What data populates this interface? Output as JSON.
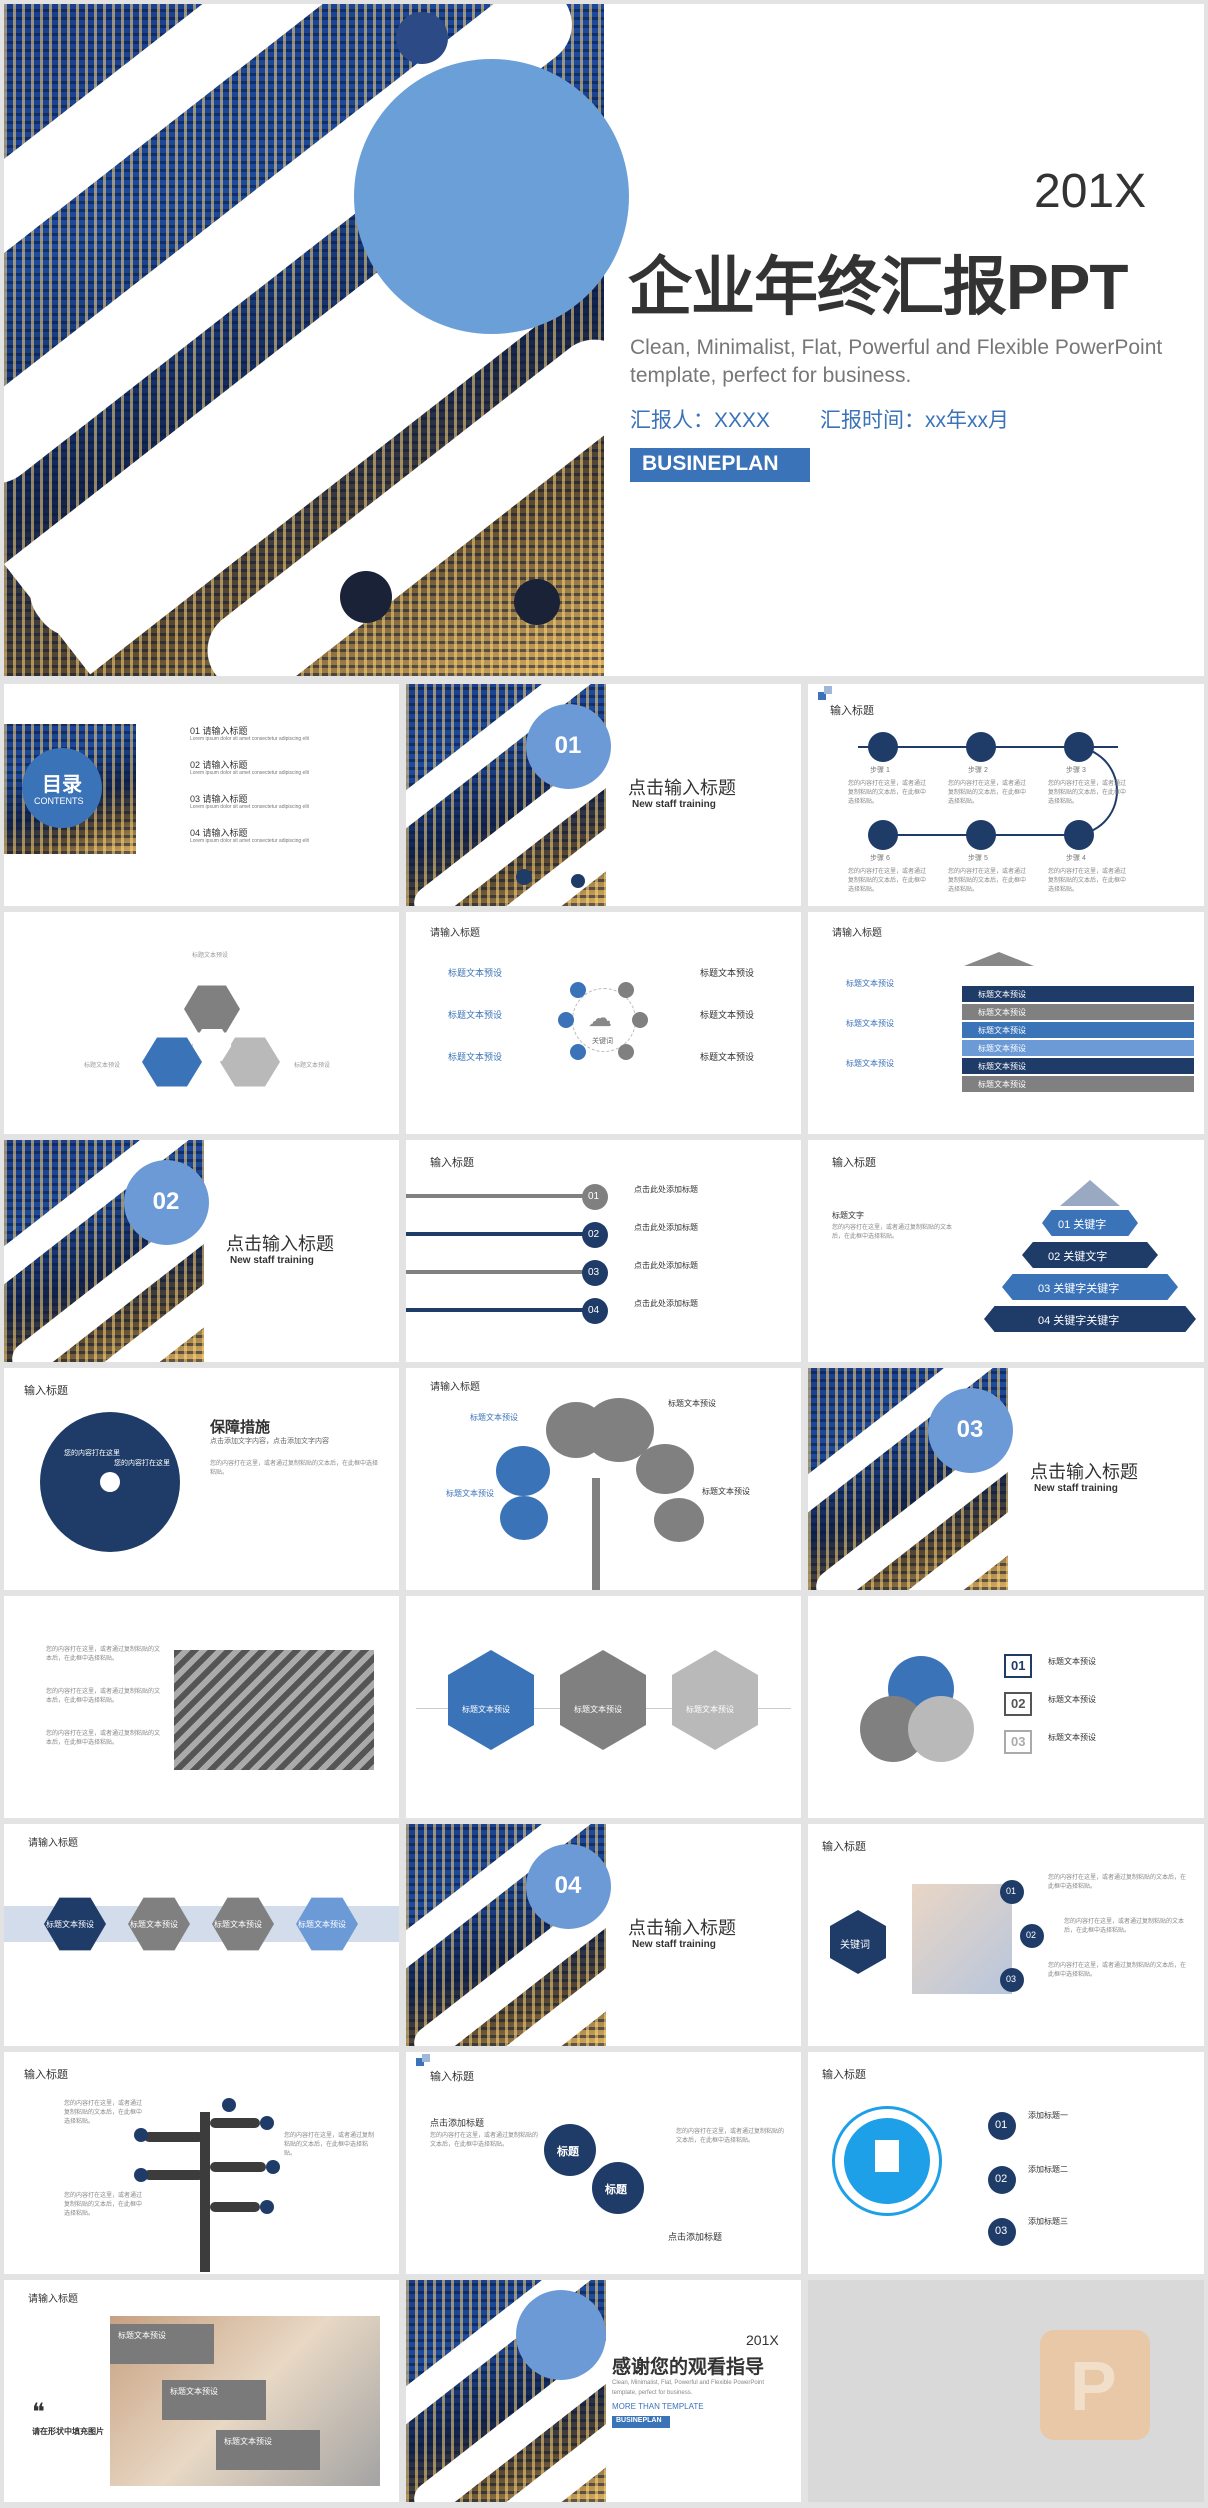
{
  "cover": {
    "year": "201X",
    "title": "企业年终汇报PPT",
    "subtitle_line1": "Clean, Minimalist, Flat, Powerful and Flexible PowerPoint",
    "subtitle_line2": "template, perfect for business.",
    "reporter": "汇报人：XXXX",
    "time": "汇报时间：xx年xx月",
    "badge": "BUSINEPLAN"
  },
  "toc": {
    "label": "目录",
    "label_en": "CONTENTS",
    "items": [
      "01 请输入标题",
      "02 请输入标题",
      "03 请输入标题",
      "04 请输入标题"
    ]
  },
  "section": {
    "heading": "点击输入标题",
    "sub": "New staff training",
    "nums": [
      "01",
      "02",
      "03",
      "04"
    ]
  },
  "input_title": "输入标题",
  "please_title": "请输入标题",
  "steps": [
    "步骤 1",
    "步骤 2",
    "步骤 3",
    "步骤 4",
    "步骤 5",
    "步骤 6"
  ],
  "step_text": "您的内容打在这里，或者通过复制粘贴的文本后，在此框中选择粘贴。",
  "heading_preset": "标题文本预设",
  "keyword": "关键词",
  "click_add": "点击此处添加标题",
  "pyramid": [
    "01 关键字",
    "02 关键文字",
    "03 关键字关键字",
    "04 关键字关键字"
  ],
  "title_text": "标题文字",
  "guarantee": {
    "title": "保障措施",
    "sub": "点击添加文字内容，点击添加文字内容"
  },
  "pie_text": "您的内容打在这里",
  "slide_box_labels": [
    "标题文本预设",
    "标题文本预设",
    "标题文本预设"
  ],
  "hex_labels": [
    "标题文本预设",
    "标题文本预设",
    "标题文本预设",
    "标题文本预设"
  ],
  "click_add_short": "点击添加标题",
  "circle_label": "标题",
  "add_titles": [
    "添加标题一",
    "添加标题二",
    "添加标题三"
  ],
  "thanks": {
    "year": "201X",
    "title": "感谢您的观看指导",
    "sub1": "Clean, Minimalist, Flat, Powerful and Flexible PowerPoint",
    "sub2": "template, perfect for business.",
    "more": "MORE THAN TEMPLATE",
    "badge": "BUSINEPLAN"
  },
  "photo_caption": "请在形状中填充图片",
  "colors": {
    "navy": "#1f3c69",
    "blue": "#3b73b9",
    "lightblue": "#6c9ad6",
    "grey": "#808080"
  }
}
